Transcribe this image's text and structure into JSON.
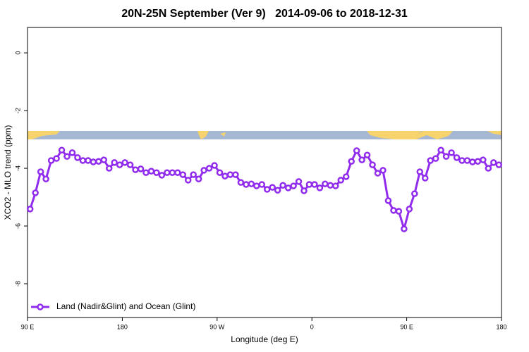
{
  "chart_data": {
    "type": "line",
    "title": "20N-25N September (Ver 9)   2014-09-06 to 2018-12-31",
    "x_label": "Longitude (deg E)",
    "y_label": "XCO2 - MLO trend (ppm)",
    "xlim": [
      90,
      540
    ],
    "xticks": [
      {
        "value": 90,
        "label": "90 E"
      },
      180,
      {
        "value": 270,
        "label": "90 W"
      },
      {
        "value": 360,
        "label": "0"
      },
      {
        "value": 450,
        "label": "90 E"
      },
      {
        "value": 540,
        "label": "180"
      }
    ],
    "ylim": [
      -9.17,
      0.88
    ],
    "yticks": [
      0,
      -2,
      -4,
      -6,
      -8
    ],
    "legend": "bottom-left",
    "x": [
      92.5,
      97.5,
      102.5,
      107.5,
      112.5,
      117.5,
      122.5,
      127.5,
      132.5,
      137.5,
      142.5,
      147.5,
      152.5,
      157.5,
      162.5,
      167.5,
      172.5,
      177.5,
      182.5,
      187.5,
      192.5,
      197.5,
      202.5,
      207.5,
      212.5,
      217.5,
      222.5,
      227.5,
      232.5,
      237.5,
      242.5,
      247.5,
      252.5,
      257.5,
      262.5,
      267.5,
      272.5,
      277.5,
      282.5,
      287.5,
      292.5,
      297.5,
      302.5,
      307.5,
      312.5,
      317.5,
      322.5,
      327.5,
      332.5,
      337.5,
      342.5,
      347.5,
      352.5,
      357.5,
      362.5,
      367.5,
      372.5,
      377.5,
      382.5,
      387.5,
      392.5,
      397.5,
      402.5,
      407.5,
      412.5,
      417.5,
      422.5,
      427.5,
      432.5,
      437.5,
      442.5,
      447.5,
      452.5,
      457.5,
      462.5,
      467.5,
      472.5,
      477.5,
      482.5,
      487.5,
      492.5,
      497.5,
      502.5,
      507.5,
      512.5,
      517.5,
      522.5,
      527.5,
      532.5,
      537.5
    ],
    "series": [
      {
        "name": "Land (Nadir&Glint) and Ocean (Glint)",
        "color": "#912cee",
        "values": [
          -5.41,
          -4.85,
          -4.12,
          -4.37,
          -3.73,
          -3.66,
          -3.37,
          -3.59,
          -3.46,
          -3.63,
          -3.73,
          -3.73,
          -3.78,
          -3.76,
          -3.71,
          -4.0,
          -3.8,
          -3.88,
          -3.8,
          -3.88,
          -4.05,
          -4.02,
          -4.15,
          -4.1,
          -4.15,
          -4.24,
          -4.15,
          -4.15,
          -4.15,
          -4.22,
          -4.41,
          -4.22,
          -4.37,
          -4.07,
          -4.0,
          -3.9,
          -4.15,
          -4.27,
          -4.22,
          -4.22,
          -4.49,
          -4.56,
          -4.54,
          -4.61,
          -4.56,
          -4.73,
          -4.66,
          -4.76,
          -4.59,
          -4.68,
          -4.61,
          -4.46,
          -4.78,
          -4.56,
          -4.56,
          -4.68,
          -4.54,
          -4.59,
          -4.61,
          -4.41,
          -4.29,
          -3.76,
          -3.39,
          -3.71,
          -3.54,
          -3.88,
          -4.17,
          -4.07,
          -5.12,
          -5.46,
          -5.49,
          -6.1,
          -5.41,
          -4.88,
          -4.12,
          -4.34,
          -3.73,
          -3.66,
          -3.37,
          -3.59,
          -3.46,
          -3.63,
          -3.73,
          -3.73,
          -3.78,
          -3.76,
          -3.71,
          -4.0,
          -3.8,
          -3.88
        ]
      }
    ]
  }
}
